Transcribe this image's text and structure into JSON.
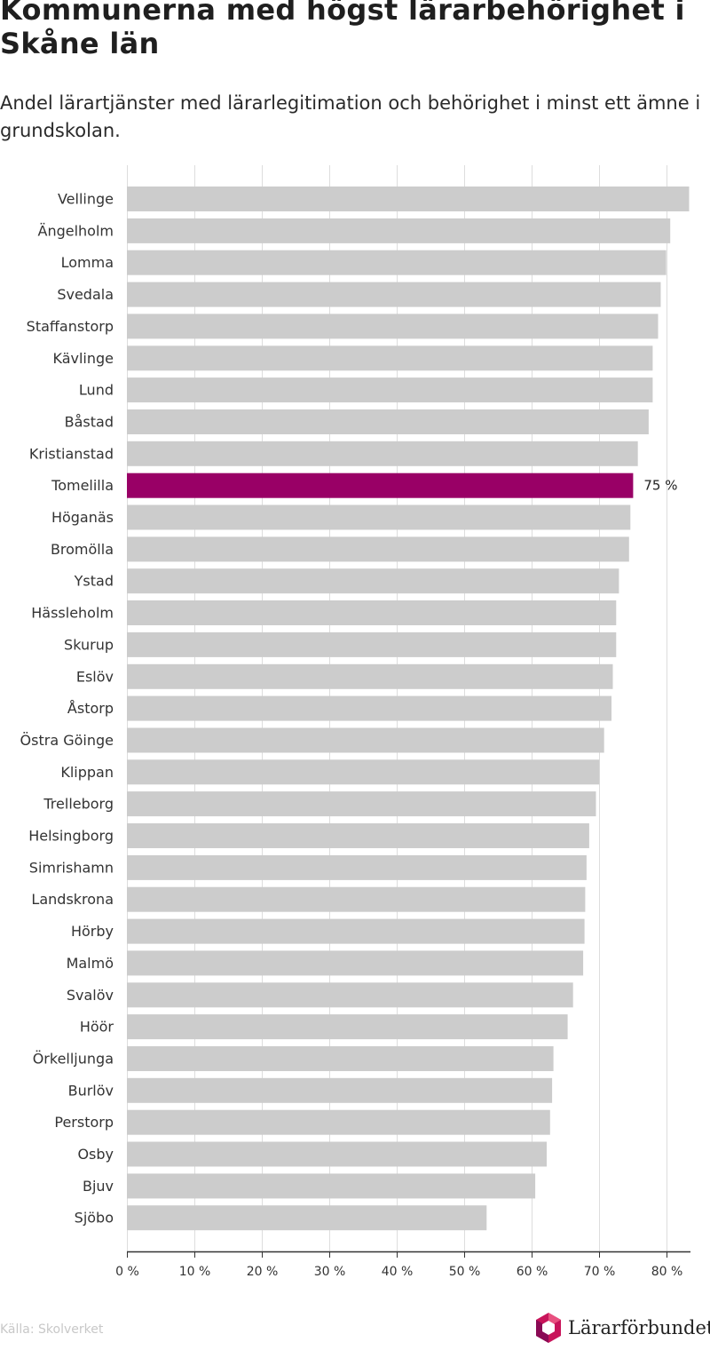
{
  "title": "Kommunerna med högst lärarbehörighet i Skåne län",
  "subtitle": "Andel lärartjänster med lärarlegitimation och behörighet i minst ett ämne i grundskolan.",
  "source": "Källa: Skolverket",
  "logo_text": "Lärarförbundet",
  "colors": {
    "bar": "#cccccc",
    "highlight": "#990066",
    "grid": "#dddddd",
    "axis": "#333333"
  },
  "chart_data": {
    "type": "bar",
    "orientation": "horizontal",
    "title": "Kommunerna med högst lärarbehörighet i Skåne län",
    "subtitle": "Andel lärartjänster med lärarlegitimation och behörighet i minst ett ämne i grundskolan.",
    "categories": [
      "Vellinge",
      "Ängelholm",
      "Lomma",
      "Svedala",
      "Staffanstorp",
      "Kävlinge",
      "Lund",
      "Båstad",
      "Kristianstad",
      "Tomelilla",
      "Höganäs",
      "Bromölla",
      "Ystad",
      "Hässleholm",
      "Skurup",
      "Eslöv",
      "Åstorp",
      "Östra Göinge",
      "Klippan",
      "Trelleborg",
      "Helsingborg",
      "Simrishamn",
      "Landskrona",
      "Hörby",
      "Malmö",
      "Svalöv",
      "Höör",
      "Örkelljunga",
      "Burlöv",
      "Perstorp",
      "Osby",
      "Bjuv",
      "Sjöbo"
    ],
    "values": [
      83.3,
      80.5,
      79.9,
      79.1,
      78.7,
      77.9,
      77.9,
      77.3,
      75.7,
      75,
      74.6,
      74.4,
      72.9,
      72.5,
      72.5,
      72.0,
      71.8,
      70.7,
      70.0,
      69.5,
      68.5,
      68.1,
      67.9,
      67.8,
      67.6,
      66.1,
      65.3,
      63.2,
      63.0,
      62.7,
      62.2,
      60.5,
      53.3
    ],
    "highlight": "Tomelilla",
    "data_labels": [
      {
        "category": "Tomelilla",
        "text": "75 %"
      }
    ],
    "xlim": [
      0,
      83.5
    ],
    "xticks": [
      0,
      10,
      20,
      30,
      40,
      50,
      60,
      70,
      80
    ],
    "tick_labels": [
      "0 %",
      "10 %",
      "20 %",
      "30 %",
      "40 %",
      "50 %",
      "60 %",
      "70 %",
      "80 %"
    ],
    "xlabel": "",
    "ylabel": "",
    "grid": true
  }
}
